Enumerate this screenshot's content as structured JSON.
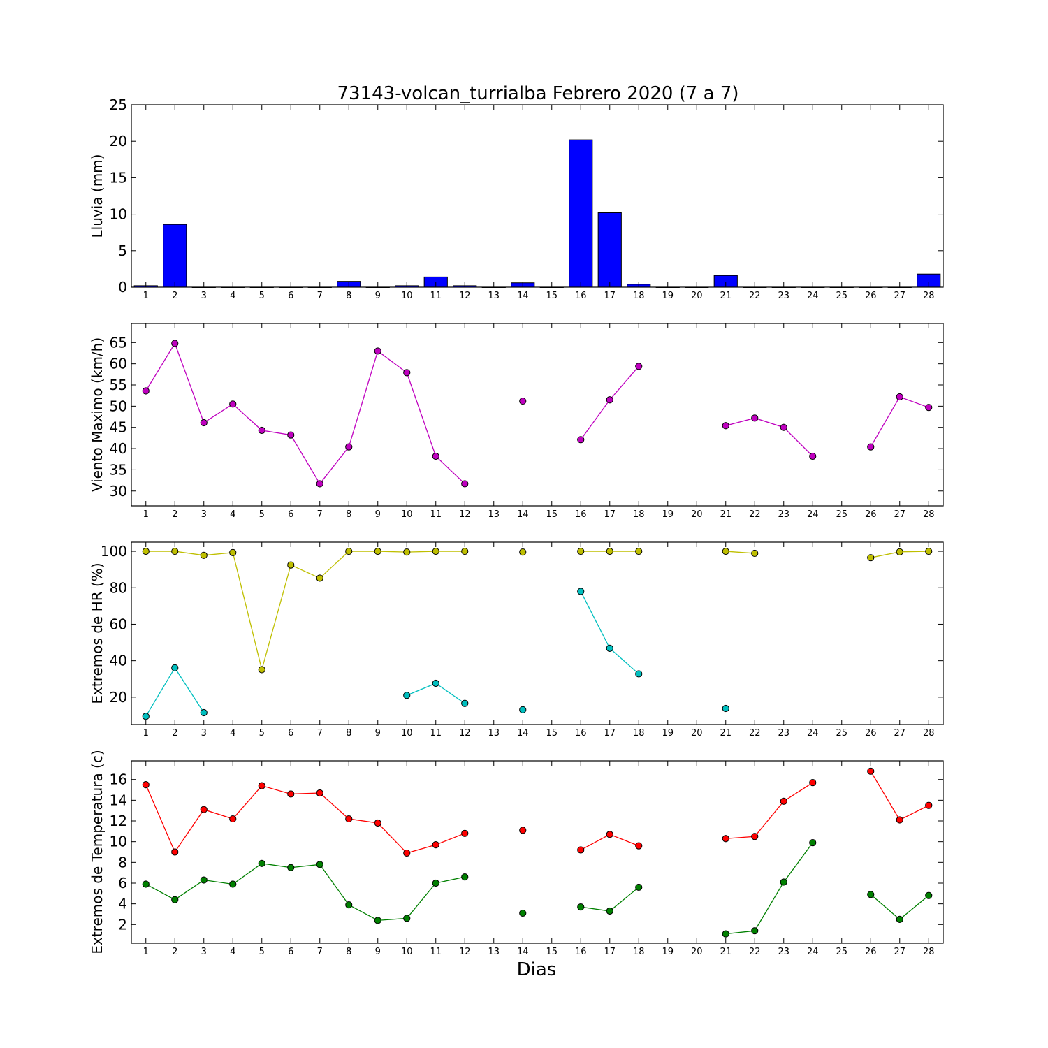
{
  "figure": {
    "title": "73143-volcan_turrialba Febrero 2020  (7 a 7)",
    "xlabel": "Dias"
  },
  "chart_data": [
    {
      "type": "bar",
      "ylabel": "Lluvia (mm)",
      "categories": [
        "1",
        "2",
        "3",
        "4",
        "5",
        "6",
        "7",
        "8",
        "9",
        "10",
        "11",
        "12",
        "13",
        "14",
        "15",
        "16",
        "17",
        "18",
        "19",
        "20",
        "21",
        "22",
        "23",
        "24",
        "25",
        "26",
        "27",
        "28"
      ],
      "ylim": [
        0,
        25
      ],
      "yticks": [
        0,
        5,
        10,
        15,
        20,
        25
      ],
      "series": [
        {
          "color": "#0000ff",
          "values": [
            0.2,
            8.6,
            0,
            0,
            0,
            0,
            0,
            0.8,
            0,
            0.2,
            1.4,
            0.2,
            0,
            0.6,
            0,
            20.2,
            10.2,
            0.4,
            0,
            0,
            1.6,
            0,
            0,
            0,
            0,
            0,
            0,
            1.8
          ]
        }
      ]
    },
    {
      "type": "line",
      "ylabel": "Viento Maximo (km/h)",
      "categories": [
        "1",
        "2",
        "3",
        "4",
        "5",
        "6",
        "7",
        "8",
        "9",
        "10",
        "11",
        "12",
        "13",
        "14",
        "15",
        "16",
        "17",
        "18",
        "19",
        "20",
        "21",
        "22",
        "23",
        "24",
        "25",
        "26",
        "27",
        "28"
      ],
      "ylim": [
        26.5,
        69.5
      ],
      "yticks": [
        30,
        35,
        40,
        45,
        50,
        55,
        60,
        65
      ],
      "series": [
        {
          "color": "#bf00bf",
          "values": [
            53.6,
            64.8,
            46.1,
            50.5,
            44.3,
            43.2,
            31.7,
            40.4,
            63.0,
            57.9,
            38.2,
            31.7,
            null,
            51.2,
            null,
            42.1,
            51.5,
            59.4,
            null,
            null,
            45.4,
            47.2,
            45.0,
            38.2,
            null,
            40.4,
            52.2,
            49.7
          ]
        }
      ]
    },
    {
      "type": "line",
      "ylabel": "Extremos de HR (%)",
      "categories": [
        "1",
        "2",
        "3",
        "4",
        "5",
        "6",
        "7",
        "8",
        "9",
        "10",
        "11",
        "12",
        "13",
        "14",
        "15",
        "16",
        "17",
        "18",
        "19",
        "20",
        "21",
        "22",
        "23",
        "24",
        "25",
        "26",
        "27",
        "28"
      ],
      "ylim": [
        5,
        105
      ],
      "yticks": [
        20,
        40,
        60,
        80,
        100
      ],
      "series": [
        {
          "color": "#bfbf00",
          "values": [
            100,
            100,
            97.8,
            99.3,
            35.1,
            92.5,
            85.3,
            100,
            100,
            99.6,
            100,
            100,
            null,
            99.6,
            null,
            100,
            100,
            100,
            null,
            null,
            100,
            98.9,
            null,
            null,
            null,
            96.5,
            99.7,
            100
          ]
        },
        {
          "color": "#00bfbf",
          "values": [
            9.5,
            36.1,
            11.5,
            null,
            null,
            null,
            null,
            null,
            null,
            21.0,
            27.6,
            16.6,
            null,
            13.1,
            null,
            78.0,
            46.8,
            32.8,
            null,
            null,
            13.8,
            null,
            null,
            null,
            null,
            null,
            null,
            null
          ]
        }
      ]
    },
    {
      "type": "line",
      "ylabel": "Extremos de Temperatura (c)",
      "categories": [
        "1",
        "2",
        "3",
        "4",
        "5",
        "6",
        "7",
        "8",
        "9",
        "10",
        "11",
        "12",
        "13",
        "14",
        "15",
        "16",
        "17",
        "18",
        "19",
        "20",
        "21",
        "22",
        "23",
        "24",
        "25",
        "26",
        "27",
        "28"
      ],
      "ylim": [
        0.2,
        17.8
      ],
      "yticks": [
        2,
        4,
        6,
        8,
        10,
        12,
        14,
        16
      ],
      "series": [
        {
          "color": "#ff0000",
          "values": [
            15.5,
            9.0,
            13.1,
            12.2,
            15.4,
            14.6,
            14.7,
            12.2,
            11.8,
            8.9,
            9.7,
            10.8,
            null,
            11.1,
            null,
            9.2,
            10.7,
            9.6,
            null,
            null,
            10.3,
            10.5,
            13.9,
            15.7,
            null,
            16.8,
            12.1,
            13.5
          ]
        },
        {
          "color": "#008000",
          "values": [
            5.9,
            4.4,
            6.3,
            5.9,
            7.9,
            7.5,
            7.8,
            3.9,
            2.4,
            2.6,
            6.0,
            6.6,
            null,
            3.1,
            null,
            3.7,
            3.3,
            5.6,
            null,
            null,
            1.1,
            1.4,
            6.1,
            9.9,
            null,
            4.9,
            2.5,
            4.8
          ]
        }
      ]
    }
  ]
}
